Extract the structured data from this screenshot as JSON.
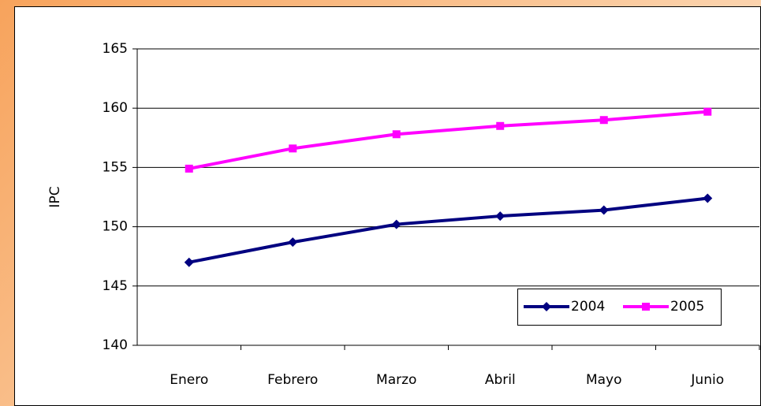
{
  "chart_data": {
    "type": "line",
    "y_label": "IPC",
    "categories": [
      "Enero",
      "Febrero",
      "Marzo",
      "Abril",
      "Mayo",
      "Junio"
    ],
    "series": [
      {
        "name": "2004",
        "color": "#000080",
        "marker": "diamond",
        "values": [
          147.0,
          148.7,
          150.2,
          150.9,
          151.4,
          152.4
        ]
      },
      {
        "name": "2005",
        "color": "#ff00ff",
        "marker": "square",
        "values": [
          154.9,
          156.6,
          157.8,
          158.5,
          159.0,
          159.7
        ]
      }
    ],
    "ylim": [
      140,
      165
    ],
    "yticks": [
      140,
      145,
      150,
      155,
      160,
      165
    ],
    "grid": true,
    "legend": "lower-right"
  }
}
